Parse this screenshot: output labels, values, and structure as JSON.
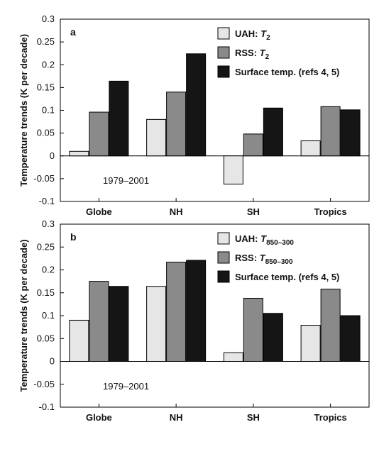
{
  "figure": {
    "colors": {
      "uah": "#e6e6e6",
      "rss": "#8a8a8a",
      "surface": "#151515",
      "frame": "#000000"
    }
  },
  "chart_data": [
    {
      "type": "bar",
      "panel_letter": "a",
      "period_label": "1979–2001",
      "ylabel": "Temperature trends (K per decade)",
      "xlabel": "",
      "ylim": [
        -0.1,
        0.3
      ],
      "yticks": [
        -0.1,
        -0.05,
        0,
        0.05,
        0.1,
        0.15,
        0.2,
        0.25,
        0.3
      ],
      "ytick_labels": [
        "-0.1",
        "-0.05",
        "0",
        "0.05",
        "0.1",
        "0.15",
        "0.2",
        "0.25",
        "0.3"
      ],
      "categories": [
        "Globe",
        "NH",
        "SH",
        "Tropics"
      ],
      "legend_position": "top-right",
      "series": [
        {
          "name": "UAH: ",
          "name_math": "T",
          "name_sub": "2",
          "color": "#e6e6e6",
          "values": [
            0.01,
            0.08,
            -0.062,
            0.033
          ]
        },
        {
          "name": "RSS: ",
          "name_math": "T",
          "name_sub": "2",
          "color": "#8a8a8a",
          "values": [
            0.096,
            0.14,
            0.048,
            0.108
          ]
        },
        {
          "name": "Surface temp. (refs 4, 5)",
          "name_math": "",
          "name_sub": "",
          "color": "#151515",
          "values": [
            0.164,
            0.224,
            0.105,
            0.101
          ]
        }
      ]
    },
    {
      "type": "bar",
      "panel_letter": "b",
      "period_label": "1979–2001",
      "ylabel": "Temperature trends (K per decade)",
      "xlabel": "",
      "ylim": [
        -0.1,
        0.3
      ],
      "yticks": [
        -0.1,
        -0.05,
        0,
        0.05,
        0.1,
        0.15,
        0.2,
        0.25,
        0.3
      ],
      "ytick_labels": [
        "-0.1",
        "-0.05",
        "0",
        "0.05",
        "0.1",
        "0.15",
        "0.2",
        "0.25",
        "0.3"
      ],
      "categories": [
        "Globe",
        "NH",
        "SH",
        "Tropics"
      ],
      "legend_position": "top-right",
      "series": [
        {
          "name": "UAH: ",
          "name_math": "T",
          "name_sub": "850–300",
          "color": "#e6e6e6",
          "values": [
            0.09,
            0.164,
            0.019,
            0.079
          ]
        },
        {
          "name": "RSS: ",
          "name_math": "T",
          "name_sub": "850–300",
          "color": "#8a8a8a",
          "values": [
            0.175,
            0.217,
            0.138,
            0.158
          ]
        },
        {
          "name": "Surface temp. (refs 4, 5)",
          "name_math": "",
          "name_sub": "",
          "color": "#151515",
          "values": [
            0.164,
            0.221,
            0.105,
            0.1
          ]
        }
      ]
    }
  ]
}
